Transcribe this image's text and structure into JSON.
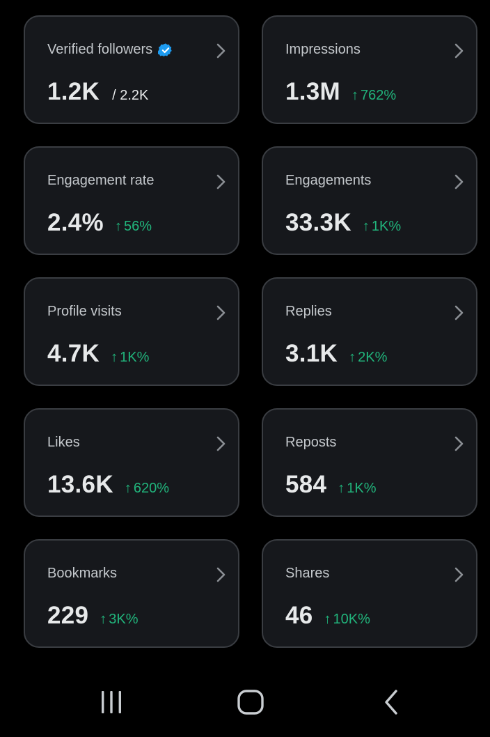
{
  "metrics": [
    {
      "label": "Verified followers",
      "value": "1.2K",
      "secondary": "/ 2.2K",
      "verified": true
    },
    {
      "label": "Impressions",
      "value": "1.3M",
      "change": "762%"
    },
    {
      "label": "Engagement rate",
      "value": "2.4%",
      "change": "56%"
    },
    {
      "label": "Engagements",
      "value": "33.3K",
      "change": "1K%"
    },
    {
      "label": "Profile visits",
      "value": "4.7K",
      "change": "1K%"
    },
    {
      "label": "Replies",
      "value": "3.1K",
      "change": "2K%"
    },
    {
      "label": "Likes",
      "value": "13.6K",
      "change": "620%"
    },
    {
      "label": "Reposts",
      "value": "584",
      "change": "1K%"
    },
    {
      "label": "Bookmarks",
      "value": "229",
      "change": "3K%"
    },
    {
      "label": "Shares",
      "value": "46",
      "change": "10K%"
    }
  ],
  "colors": {
    "background": "#000000",
    "card_background": "#16181c",
    "card_border": "#3a3d42",
    "positive_change": "#21b57c",
    "verified_badge": "#1d9bf0"
  },
  "icons": {
    "change_arrow": "up-arrow-icon",
    "card_action": "chevron-right-icon",
    "verified": "verified-badge-icon"
  },
  "navbar": {
    "buttons": [
      "recent-apps-icon",
      "home-icon",
      "back-icon"
    ]
  }
}
